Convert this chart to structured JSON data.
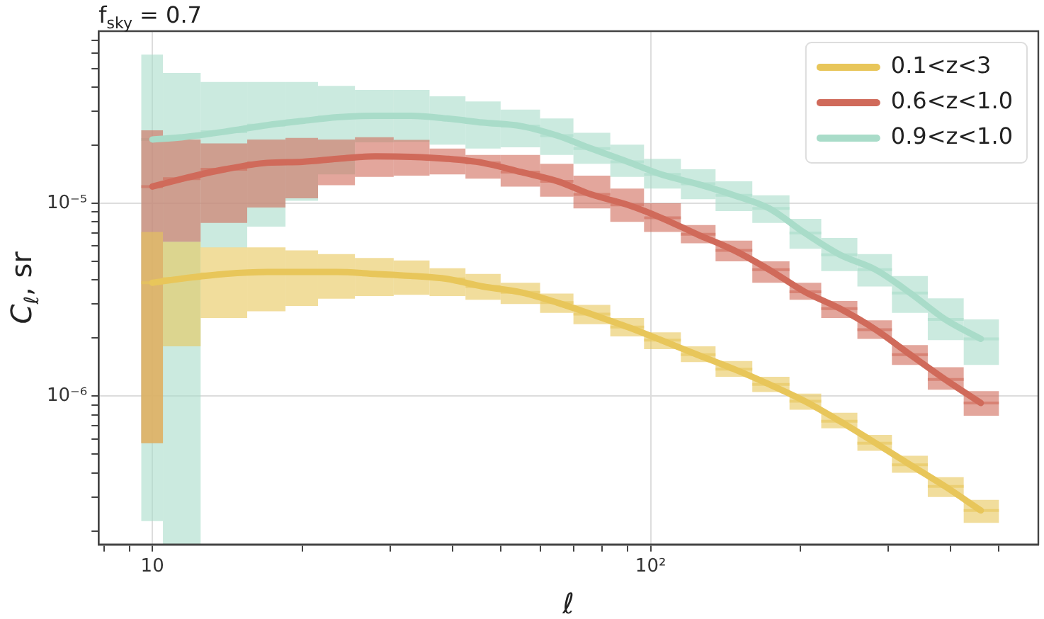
{
  "chart_data": {
    "type": "line",
    "title": "f$_{sky}$ = 0.7",
    "xlabel": "ℓ",
    "ylabel": "C$_{ℓ}$, sr",
    "log": "xy",
    "grid": true,
    "legend": "top right",
    "marker": "none",
    "xlim": [
      7.8,
      600
    ],
    "ylim": [
      1.7e-07,
      7.8e-05
    ],
    "xticks": [
      {
        "value": 8,
        "label": null
      },
      {
        "value": 9,
        "label": null
      },
      {
        "value": 10,
        "label": "10"
      },
      {
        "value": 20,
        "label": null
      },
      {
        "value": 30,
        "label": null
      },
      {
        "value": 40,
        "label": null
      },
      {
        "value": 50,
        "label": null
      },
      {
        "value": 60,
        "label": null
      },
      {
        "value": 70,
        "label": null
      },
      {
        "value": 80,
        "label": null
      },
      {
        "value": 90,
        "label": null
      },
      {
        "value": 100,
        "label": "10²"
      },
      {
        "value": 200,
        "label": null
      },
      {
        "value": 300,
        "label": null
      },
      {
        "value": 400,
        "label": null
      },
      {
        "value": 500,
        "label": null
      }
    ],
    "yticks": [
      {
        "value": 2e-07,
        "label": null
      },
      {
        "value": 3e-07,
        "label": null
      },
      {
        "value": 4e-07,
        "label": null
      },
      {
        "value": 5e-07,
        "label": null
      },
      {
        "value": 6e-07,
        "label": null
      },
      {
        "value": 7e-07,
        "label": null
      },
      {
        "value": 8e-07,
        "label": null
      },
      {
        "value": 9e-07,
        "label": null
      },
      {
        "value": 1e-06,
        "label": "10⁻⁶"
      },
      {
        "value": 2e-06,
        "label": null
      },
      {
        "value": 3e-06,
        "label": null
      },
      {
        "value": 4e-06,
        "label": null
      },
      {
        "value": 5e-06,
        "label": null
      },
      {
        "value": 6e-06,
        "label": null
      },
      {
        "value": 7e-06,
        "label": null
      },
      {
        "value": 8e-06,
        "label": null
      },
      {
        "value": 9e-06,
        "label": null
      },
      {
        "value": 1e-05,
        "label": "10⁻⁵"
      },
      {
        "value": 2e-05,
        "label": null
      },
      {
        "value": 3e-05,
        "label": null
      },
      {
        "value": 4e-05,
        "label": null
      },
      {
        "value": 5e-05,
        "label": null
      },
      {
        "value": 6e-05,
        "label": null
      },
      {
        "value": 7e-05,
        "label": null
      }
    ],
    "x": [
      10,
      11.5,
      14,
      17,
      20,
      23.5,
      28,
      33,
      39,
      46,
      55,
      65,
      76,
      90,
      105,
      124,
      147,
      173,
      204,
      240,
      283,
      332,
      390,
      460
    ],
    "series": [
      {
        "name": "0.1<z<3",
        "color": "#e8c65a",
        "values": [
          3.87e-06,
          4.07e-06,
          4.3e-06,
          4.4e-06,
          4.4e-06,
          4.4e-06,
          4.3e-06,
          4.2e-06,
          4.05e-06,
          3.7e-06,
          3.45e-06,
          3.05e-06,
          2.66e-06,
          2.28e-06,
          1.95e-06,
          1.64e-06,
          1.38e-06,
          1.15e-06,
          9.4e-07,
          7.4e-07,
          5.7e-07,
          4.4e-07,
          3.4e-07,
          2.55e-07
        ],
        "errors": [
          [
            5.7e-07,
            7.1e-06
          ],
          [
            1.81e-06,
            6.3e-06
          ],
          [
            2.54e-06,
            5.9e-06
          ],
          [
            2.75e-06,
            5.9e-06
          ],
          [
            2.93e-06,
            5.7e-06
          ],
          [
            3.2e-06,
            5.45e-06
          ],
          [
            3.3e-06,
            5.2e-06
          ],
          [
            3.35e-06,
            5.05e-06
          ],
          [
            3.3e-06,
            4.6e-06
          ],
          [
            3.16e-06,
            4.3e-06
          ],
          [
            3e-06,
            3.87e-06
          ],
          [
            2.7e-06,
            3.4e-06
          ],
          [
            2.36e-06,
            2.97e-06
          ],
          [
            2.04e-06,
            2.54e-06
          ],
          [
            1.75e-06,
            2.14e-06
          ],
          [
            1.5e-06,
            1.81e-06
          ],
          [
            1.26e-06,
            1.52e-06
          ],
          [
            1.05e-06,
            1.26e-06
          ],
          [
            8.5e-07,
            1.03e-06
          ],
          [
            6.8e-07,
            8.2e-07
          ],
          [
            5.2e-07,
            6.3e-07
          ],
          [
            4e-07,
            4.9e-07
          ],
          [
            3e-07,
            3.8e-07
          ],
          [
            2.2e-07,
            2.9e-07
          ]
        ],
        "xerrors": [
          [
            9.5,
            10.5
          ],
          [
            10.5,
            12.5
          ],
          [
            12.5,
            15.5
          ],
          [
            15.5,
            18.5
          ],
          [
            18.5,
            21.5
          ],
          [
            21.5,
            25.5
          ],
          [
            25.5,
            30.5
          ],
          [
            30.5,
            36
          ],
          [
            36,
            42.5
          ],
          [
            42.5,
            50
          ],
          [
            50,
            60
          ],
          [
            60,
            70
          ],
          [
            70,
            83
          ],
          [
            83,
            97
          ],
          [
            97,
            115
          ],
          [
            115,
            135
          ],
          [
            135,
            160
          ],
          [
            160,
            190
          ],
          [
            190,
            220
          ],
          [
            220,
            260
          ],
          [
            260,
            305
          ],
          [
            305,
            360
          ],
          [
            360,
            425
          ],
          [
            425,
            500
          ]
        ]
      },
      {
        "name": "0.6<z<1.0",
        "color": "#d06a5a",
        "values": [
          1.22e-05,
          1.34e-05,
          1.5e-05,
          1.62e-05,
          1.64e-05,
          1.7e-05,
          1.75e-05,
          1.74e-05,
          1.7e-05,
          1.62e-05,
          1.45e-05,
          1.3e-05,
          1.11e-05,
          9.8e-06,
          8.4e-06,
          6.9e-06,
          5.7e-06,
          4.52e-06,
          3.47e-06,
          2.84e-06,
          2.21e-06,
          1.64e-06,
          1.22e-06,
          9.2e-07
        ],
        "errors": [
          [
            5.7e-07,
            2.39e-05
          ],
          [
            6.3e-06,
            2.14e-05
          ],
          [
            7.9e-06,
            2.04e-05
          ],
          [
            9.5e-06,
            2.14e-05
          ],
          [
            1.06e-05,
            2.18e-05
          ],
          [
            1.24e-05,
            2.14e-05
          ],
          [
            1.37e-05,
            2.2e-05
          ],
          [
            1.39e-05,
            2.13e-05
          ],
          [
            1.41e-05,
            1.92e-05
          ],
          [
            1.34e-05,
            1.78e-05
          ],
          [
            1.22e-05,
            1.78e-05
          ],
          [
            1.08e-05,
            1.6e-05
          ],
          [
            9.4e-06,
            1.39e-05
          ],
          [
            8e-06,
            1.19e-05
          ],
          [
            7.1e-06,
            1e-05
          ],
          [
            6.2e-06,
            7.7e-06
          ],
          [
            5e-06,
            6.4e-06
          ],
          [
            3.87e-06,
            5e-06
          ],
          [
            3.16e-06,
            3.87e-06
          ],
          [
            2.54e-06,
            3.11e-06
          ],
          [
            1.98e-06,
            2.47e-06
          ],
          [
            1.45e-06,
            1.84e-06
          ],
          [
            1.08e-06,
            1.41e-06
          ],
          [
            7.9e-07,
            1.06e-06
          ]
        ],
        "xerrors": [
          [
            9.5,
            10.5
          ],
          [
            10.5,
            12.5
          ],
          [
            12.5,
            15.5
          ],
          [
            15.5,
            18.5
          ],
          [
            18.5,
            21.5
          ],
          [
            21.5,
            25.5
          ],
          [
            25.5,
            30.5
          ],
          [
            30.5,
            36
          ],
          [
            36,
            42.5
          ],
          [
            42.5,
            50
          ],
          [
            50,
            60
          ],
          [
            60,
            70
          ],
          [
            70,
            83
          ],
          [
            83,
            97
          ],
          [
            97,
            115
          ],
          [
            115,
            135
          ],
          [
            135,
            160
          ],
          [
            160,
            190
          ],
          [
            190,
            220
          ],
          [
            220,
            260
          ],
          [
            260,
            305
          ],
          [
            305,
            360
          ],
          [
            360,
            425
          ],
          [
            425,
            500
          ]
        ]
      },
      {
        "name": "0.9<z<1.0",
        "color": "#a9dcc9",
        "values": [
          2.14e-05,
          2.2e-05,
          2.35e-05,
          2.54e-05,
          2.67e-05,
          2.79e-05,
          2.84e-05,
          2.84e-05,
          2.75e-05,
          2.62e-05,
          2.51e-05,
          2.24e-05,
          1.92e-05,
          1.64e-05,
          1.41e-05,
          1.26e-05,
          1.1e-05,
          9.4e-06,
          7e-06,
          5.4e-06,
          4.52e-06,
          3.42e-06,
          2.5e-06,
          1.98e-06
        ],
        "errors": [
          [
            2.25e-07,
            5.9e-05
          ],
          [
            1.7e-07,
            4.74e-05
          ],
          [
            5.89e-06,
            4.25e-05
          ],
          [
            7.56e-06,
            4.25e-05
          ],
          [
            1.03e-05,
            4.25e-05
          ],
          [
            1.41e-05,
            4.06e-05
          ],
          [
            2.07e-05,
            3.87e-05
          ],
          [
            2.08e-05,
            3.87e-05
          ],
          [
            2.01e-05,
            3.58e-05
          ],
          [
            1.92e-05,
            3.37e-05
          ],
          [
            1.95e-05,
            3.06e-05
          ],
          [
            1.78e-05,
            2.75e-05
          ],
          [
            1.6e-05,
            2.32e-05
          ],
          [
            1.37e-05,
            2.01e-05
          ],
          [
            1.19e-05,
            1.7e-05
          ],
          [
            1.05e-05,
            1.5e-05
          ],
          [
            9.1e-06,
            1.3e-05
          ],
          [
            7.9e-06,
            1.1e-05
          ],
          [
            5.8e-06,
            8.3e-06
          ],
          [
            4.45e-06,
            6.6e-06
          ],
          [
            3.7e-06,
            5.45e-06
          ],
          [
            2.7e-06,
            4.19e-06
          ],
          [
            1.95e-06,
            3.21e-06
          ],
          [
            1.45e-06,
            2.5e-06
          ]
        ],
        "xerrors": [
          [
            9.5,
            10.5
          ],
          [
            10.5,
            12.5
          ],
          [
            12.5,
            15.5
          ],
          [
            15.5,
            18.5
          ],
          [
            18.5,
            21.5
          ],
          [
            21.5,
            25.5
          ],
          [
            25.5,
            30.5
          ],
          [
            30.5,
            36
          ],
          [
            36,
            42.5
          ],
          [
            42.5,
            50
          ],
          [
            50,
            60
          ],
          [
            60,
            70
          ],
          [
            70,
            83
          ],
          [
            83,
            97
          ],
          [
            97,
            115
          ],
          [
            115,
            135
          ],
          [
            135,
            160
          ],
          [
            160,
            190
          ],
          [
            190,
            220
          ],
          [
            220,
            260
          ],
          [
            260,
            305
          ],
          [
            305,
            360
          ],
          [
            360,
            425
          ],
          [
            425,
            500
          ]
        ]
      }
    ]
  }
}
